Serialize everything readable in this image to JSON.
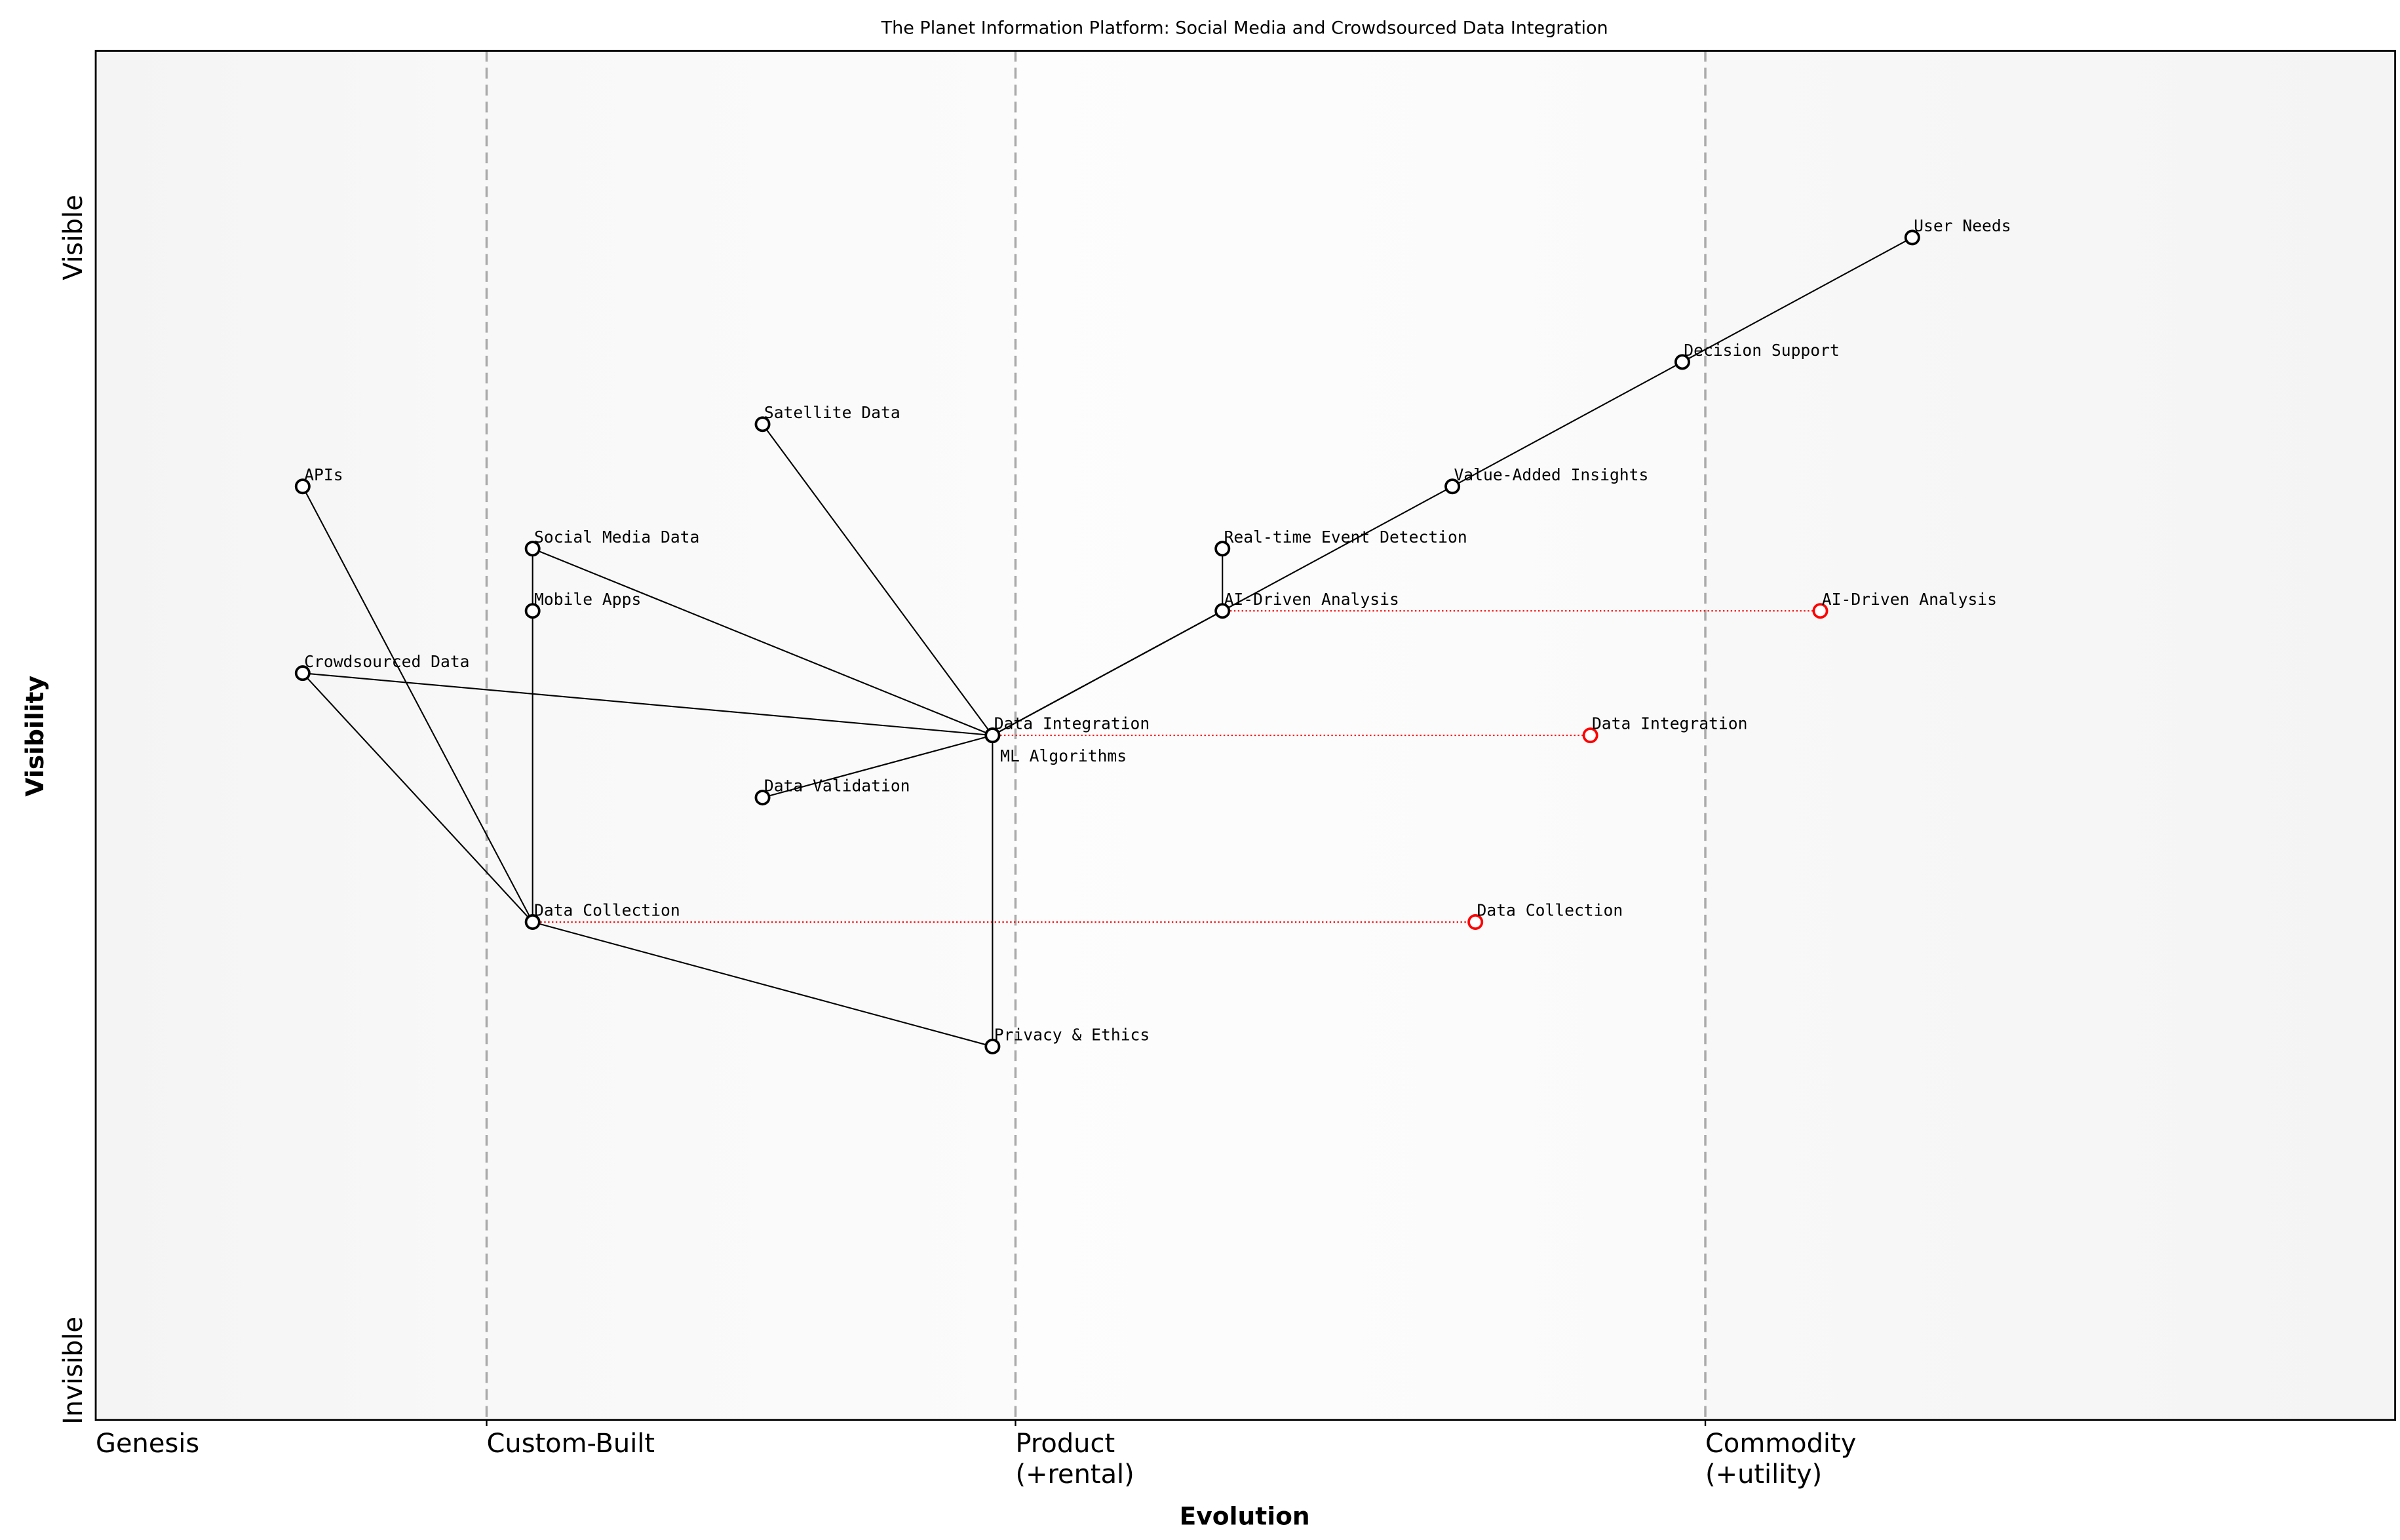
{
  "chart_data": {
    "type": "wardley-map",
    "title": "The Planet Information Platform: Social Media and Crowdsourced Data Integration",
    "xlabel": "Evolution",
    "ylabel": "Visibility",
    "xlim": [
      0,
      1
    ],
    "ylim": [
      0,
      1.1
    ],
    "y_ticks": [
      {
        "label": "Invisible",
        "value": 0
      },
      {
        "label": "Visible",
        "value": 1
      }
    ],
    "stages": [
      {
        "label": "Genesis",
        "value": 0
      },
      {
        "label": "Custom-Built",
        "value": 0.17
      },
      {
        "label": "Product\n(+rental)",
        "value": 0.4
      },
      {
        "label": "Commodity\n(+utility)",
        "value": 0.7
      }
    ],
    "colors": {
      "component": "#000000",
      "evolved": "#ff0000",
      "stage_line": "#aaaaaa",
      "evolve_line": "#ff0000"
    },
    "components": [
      {
        "id": "user-needs",
        "name": "User Needs",
        "evolution": 0.79,
        "visibility": 0.95
      },
      {
        "id": "decision-support",
        "name": "Decision Support",
        "evolution": 0.69,
        "visibility": 0.85
      },
      {
        "id": "value-added-insights",
        "name": "Value-Added Insights",
        "evolution": 0.59,
        "visibility": 0.75
      },
      {
        "id": "real-time-event-detection",
        "name": "Real-time Event Detection",
        "evolution": 0.49,
        "visibility": 0.7
      },
      {
        "id": "ai-driven-analysis",
        "name": "AI-Driven Analysis",
        "evolution": 0.49,
        "visibility": 0.65
      },
      {
        "id": "data-integration",
        "name": "Data Integration",
        "evolution": 0.39,
        "visibility": 0.55
      },
      {
        "id": "ml-algorithms",
        "name": "ML Algorithms",
        "evolution": 0.39,
        "visibility": 0.55
      },
      {
        "id": "satellite-data",
        "name": "Satellite Data",
        "evolution": 0.29,
        "visibility": 0.8
      },
      {
        "id": "apis",
        "name": "APIs",
        "evolution": 0.09,
        "visibility": 0.75
      },
      {
        "id": "social-media-data",
        "name": "Social Media Data",
        "evolution": 0.19,
        "visibility": 0.7
      },
      {
        "id": "mobile-apps",
        "name": "Mobile Apps",
        "evolution": 0.19,
        "visibility": 0.65
      },
      {
        "id": "crowdsourced-data",
        "name": "Crowdsourced Data",
        "evolution": 0.09,
        "visibility": 0.6
      },
      {
        "id": "data-validation",
        "name": "Data Validation",
        "evolution": 0.29,
        "visibility": 0.5
      },
      {
        "id": "data-collection",
        "name": "Data Collection",
        "evolution": 0.19,
        "visibility": 0.4
      },
      {
        "id": "privacy-ethics",
        "name": "Privacy & Ethics",
        "evolution": 0.39,
        "visibility": 0.3
      }
    ],
    "links": [
      [
        "user-needs",
        "decision-support"
      ],
      [
        "decision-support",
        "value-added-insights"
      ],
      [
        "value-added-insights",
        "ai-driven-analysis"
      ],
      [
        "ai-driven-analysis",
        "real-time-event-detection"
      ],
      [
        "ai-driven-analysis",
        "data-integration"
      ],
      [
        "ai-driven-analysis",
        "ml-algorithms"
      ],
      [
        "data-integration",
        "satellite-data"
      ],
      [
        "data-integration",
        "social-media-data"
      ],
      [
        "data-integration",
        "crowdsourced-data"
      ],
      [
        "data-integration",
        "data-validation"
      ],
      [
        "data-integration",
        "privacy-ethics"
      ],
      [
        "social-media-data",
        "mobile-apps"
      ],
      [
        "mobile-apps",
        "data-collection"
      ],
      [
        "apis",
        "data-collection"
      ],
      [
        "crowdsourced-data",
        "data-collection"
      ],
      [
        "data-collection",
        "privacy-ethics"
      ]
    ],
    "evolutions": [
      {
        "name": "AI-Driven Analysis",
        "from": "ai-driven-analysis",
        "evolution": 0.75,
        "visibility": 0.65
      },
      {
        "name": "Data Integration",
        "from": "data-integration",
        "evolution": 0.65,
        "visibility": 0.55
      },
      {
        "name": "Data Collection",
        "from": "data-collection",
        "evolution": 0.6,
        "visibility": 0.4
      }
    ]
  }
}
